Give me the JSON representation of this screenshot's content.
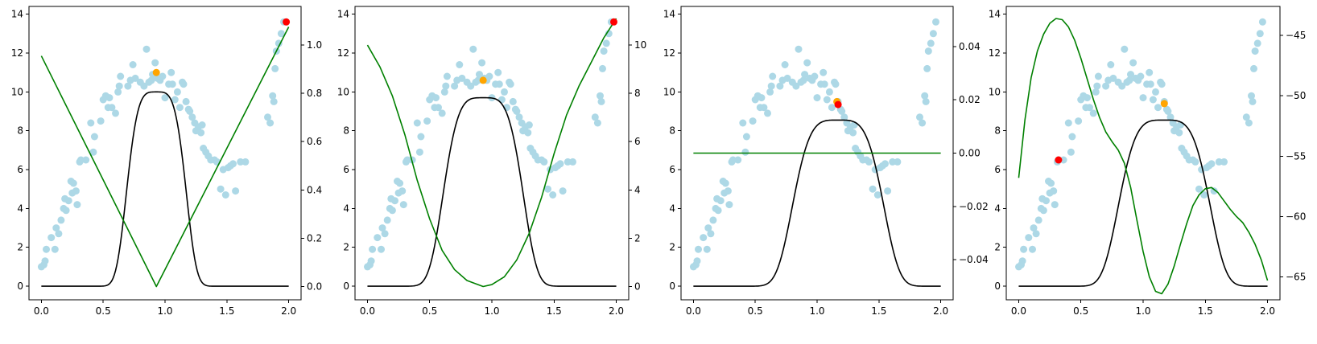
{
  "figure": {
    "colors": {
      "scatter": "#add8e6",
      "kernel_line": "#000000",
      "right_line": "#008000",
      "highlight_orange": "#ffa500",
      "highlight_red": "#ff0000"
    }
  },
  "chart_data": [
    {
      "type": "scatter",
      "panel": 1,
      "xlim": [
        -0.1,
        2.1
      ],
      "ylim": [
        -0.7,
        14.4
      ],
      "xticks": [
        0.0,
        0.5,
        1.0,
        1.5,
        2.0
      ],
      "xtick_labels": [
        "0.0",
        "0.5",
        "1.0",
        "1.5",
        "2.0"
      ],
      "yticks": [
        0,
        2,
        4,
        6,
        8,
        10,
        12,
        14
      ],
      "ytick_labels": [
        "0",
        "2",
        "4",
        "6",
        "8",
        "10",
        "12",
        "14"
      ],
      "y2lim": [
        -0.055,
        1.16
      ],
      "y2ticks": [
        0.0,
        0.2,
        0.4,
        0.6,
        0.8,
        1.0
      ],
      "y2tick_labels": [
        "0.0",
        "0.2",
        "0.4",
        "0.6",
        "0.8",
        "1.0"
      ],
      "kernel": {
        "center": 0.93,
        "width": 0.262,
        "power": 4,
        "amplitude": 10.0
      },
      "green_line": {
        "kind": "piecewise",
        "points": [
          [
            0.0,
            0.955
          ],
          [
            0.93,
            0.0
          ],
          [
            2.0,
            1.075
          ]
        ]
      },
      "highlight_orange": [
        0.93,
        11.0
      ],
      "highlight_red": [
        1.98,
        13.6
      ],
      "title": "",
      "xlabel": "",
      "ylabel": ""
    },
    {
      "type": "scatter",
      "panel": 2,
      "xlim": [
        -0.1,
        2.1
      ],
      "ylim": [
        -0.7,
        14.4
      ],
      "xticks": [
        0.0,
        0.5,
        1.0,
        1.5,
        2.0
      ],
      "xtick_labels": [
        "0.0",
        "0.5",
        "1.0",
        "1.5",
        "2.0"
      ],
      "yticks": [
        0,
        2,
        4,
        6,
        8,
        10,
        12,
        14
      ],
      "ytick_labels": [
        "0",
        "2",
        "4",
        "6",
        "8",
        "10",
        "12",
        "14"
      ],
      "y2lim": [
        -0.55,
        11.6
      ],
      "y2ticks": [
        0,
        2,
        4,
        6,
        8,
        10
      ],
      "y2tick_labels": [
        "0",
        "2",
        "4",
        "6",
        "8",
        "10"
      ],
      "kernel": {
        "center": 0.93,
        "width": 0.35,
        "power": 4,
        "amplitude": 9.7
      },
      "green_line": {
        "kind": "points",
        "points": [
          [
            0.0,
            10.0
          ],
          [
            0.1,
            9.1
          ],
          [
            0.2,
            7.9
          ],
          [
            0.3,
            6.3
          ],
          [
            0.4,
            4.4
          ],
          [
            0.5,
            2.8
          ],
          [
            0.6,
            1.5
          ],
          [
            0.7,
            0.7
          ],
          [
            0.8,
            0.25
          ],
          [
            0.93,
            0.0
          ],
          [
            1.0,
            0.08
          ],
          [
            1.1,
            0.4
          ],
          [
            1.2,
            1.1
          ],
          [
            1.3,
            2.2
          ],
          [
            1.4,
            3.7
          ],
          [
            1.5,
            5.5
          ],
          [
            1.6,
            7.1
          ],
          [
            1.7,
            8.3
          ],
          [
            1.8,
            9.3
          ],
          [
            1.9,
            10.3
          ],
          [
            2.0,
            11.1
          ]
        ]
      },
      "highlight_orange": [
        0.93,
        10.6
      ],
      "highlight_red": [
        1.98,
        13.6
      ],
      "title": "",
      "xlabel": "",
      "ylabel": ""
    },
    {
      "type": "scatter",
      "panel": 3,
      "xlim": [
        -0.1,
        2.1
      ],
      "ylim": [
        -0.7,
        14.4
      ],
      "xticks": [
        0.0,
        0.5,
        1.0,
        1.5,
        2.0
      ],
      "xtick_labels": [
        "0.0",
        "0.5",
        "1.0",
        "1.5",
        "2.0"
      ],
      "yticks": [
        0,
        2,
        4,
        6,
        8,
        10,
        12,
        14
      ],
      "ytick_labels": [
        "0",
        "2",
        "4",
        "6",
        "8",
        "10",
        "12",
        "14"
      ],
      "y2lim": [
        -0.055,
        0.055
      ],
      "y2ticks": [
        -0.04,
        -0.02,
        0.0,
        0.02,
        0.04
      ],
      "y2tick_labels": [
        "−0.04",
        "−0.02",
        "0.00",
        "0.02",
        "0.04"
      ],
      "kernel": {
        "center": 1.17,
        "width": 0.4,
        "power": 4,
        "amplitude": 8.55
      },
      "green_line": {
        "kind": "points",
        "points": [
          [
            0.0,
            0.0
          ],
          [
            2.0,
            0.0
          ]
        ]
      },
      "highlight_orange": [
        1.16,
        9.5
      ],
      "highlight_red": [
        1.17,
        9.35
      ],
      "title": "",
      "xlabel": "",
      "ylabel": ""
    },
    {
      "type": "scatter",
      "panel": 4,
      "xlim": [
        -0.1,
        2.1
      ],
      "ylim": [
        -0.7,
        14.4
      ],
      "xticks": [
        0.0,
        0.5,
        1.0,
        1.5,
        2.0
      ],
      "xtick_labels": [
        "0.0",
        "0.5",
        "1.0",
        "1.5",
        "2.0"
      ],
      "yticks": [
        0,
        2,
        4,
        6,
        8,
        10,
        12,
        14
      ],
      "ytick_labels": [
        "0",
        "2",
        "4",
        "6",
        "8",
        "10",
        "12",
        "14"
      ],
      "y2lim": [
        -66.9,
        -42.6
      ],
      "y2ticks": [
        -65,
        -60,
        -55,
        -50,
        -45
      ],
      "y2tick_labels": [
        "−65",
        "−60",
        "−55",
        "−50",
        "−45"
      ],
      "kernel": {
        "center": 1.17,
        "width": 0.4,
        "power": 4,
        "amplitude": 8.55
      },
      "green_line": {
        "kind": "points",
        "points": [
          [
            0.0,
            -56.8
          ],
          [
            0.05,
            -52.0
          ],
          [
            0.1,
            -48.5
          ],
          [
            0.15,
            -46.3
          ],
          [
            0.2,
            -44.9
          ],
          [
            0.25,
            -44.0
          ],
          [
            0.3,
            -43.6
          ],
          [
            0.35,
            -43.7
          ],
          [
            0.4,
            -44.3
          ],
          [
            0.45,
            -45.4
          ],
          [
            0.5,
            -46.9
          ],
          [
            0.55,
            -48.6
          ],
          [
            0.6,
            -50.3
          ],
          [
            0.65,
            -51.8
          ],
          [
            0.7,
            -53.0
          ],
          [
            0.75,
            -53.8
          ],
          [
            0.8,
            -54.5
          ],
          [
            0.85,
            -55.6
          ],
          [
            0.9,
            -57.6
          ],
          [
            0.95,
            -60.3
          ],
          [
            1.0,
            -62.9
          ],
          [
            1.05,
            -65.0
          ],
          [
            1.1,
            -66.2
          ],
          [
            1.15,
            -66.4
          ],
          [
            1.2,
            -65.6
          ],
          [
            1.25,
            -64.1
          ],
          [
            1.3,
            -62.3
          ],
          [
            1.35,
            -60.6
          ],
          [
            1.4,
            -59.1
          ],
          [
            1.45,
            -58.2
          ],
          [
            1.5,
            -57.7
          ],
          [
            1.55,
            -57.6
          ],
          [
            1.6,
            -58.0
          ],
          [
            1.65,
            -58.7
          ],
          [
            1.7,
            -59.4
          ],
          [
            1.75,
            -60.0
          ],
          [
            1.8,
            -60.5
          ],
          [
            1.85,
            -61.3
          ],
          [
            1.9,
            -62.3
          ],
          [
            1.95,
            -63.6
          ],
          [
            2.0,
            -65.3
          ]
        ]
      },
      "highlight_orange": [
        1.17,
        9.4
      ],
      "highlight_red": [
        0.32,
        6.5
      ],
      "title": "",
      "xlabel": "",
      "ylabel": ""
    }
  ],
  "scatter_points": [
    [
      0.0,
      1.0
    ],
    [
      0.02,
      1.1
    ],
    [
      0.03,
      1.3
    ],
    [
      0.04,
      1.9
    ],
    [
      0.08,
      2.5
    ],
    [
      0.11,
      1.9
    ],
    [
      0.12,
      3.0
    ],
    [
      0.14,
      2.7
    ],
    [
      0.16,
      3.4
    ],
    [
      0.18,
      4.0
    ],
    [
      0.19,
      4.5
    ],
    [
      0.2,
      3.9
    ],
    [
      0.22,
      4.4
    ],
    [
      0.24,
      5.4
    ],
    [
      0.25,
      4.8
    ],
    [
      0.26,
      5.3
    ],
    [
      0.28,
      4.9
    ],
    [
      0.29,
      4.2
    ],
    [
      0.31,
      6.4
    ],
    [
      0.32,
      6.5
    ],
    [
      0.36,
      6.5
    ],
    [
      0.4,
      8.4
    ],
    [
      0.42,
      6.9
    ],
    [
      0.43,
      7.7
    ],
    [
      0.48,
      8.5
    ],
    [
      0.5,
      9.6
    ],
    [
      0.52,
      9.8
    ],
    [
      0.54,
      9.2
    ],
    [
      0.55,
      9.7
    ],
    [
      0.57,
      9.2
    ],
    [
      0.6,
      8.9
    ],
    [
      0.62,
      10.0
    ],
    [
      0.63,
      10.3
    ],
    [
      0.64,
      10.8
    ],
    [
      0.7,
      10.3
    ],
    [
      0.72,
      10.6
    ],
    [
      0.74,
      11.4
    ],
    [
      0.76,
      10.7
    ],
    [
      0.8,
      10.5
    ],
    [
      0.83,
      10.3
    ],
    [
      0.85,
      12.2
    ],
    [
      0.87,
      10.5
    ],
    [
      0.89,
      10.6
    ],
    [
      0.9,
      10.9
    ],
    [
      0.92,
      11.5
    ],
    [
      0.94,
      10.7
    ],
    [
      0.96,
      10.6
    ],
    [
      0.98,
      10.8
    ],
    [
      1.0,
      9.7
    ],
    [
      1.03,
      10.4
    ],
    [
      1.05,
      11.0
    ],
    [
      1.06,
      10.4
    ],
    [
      1.08,
      9.6
    ],
    [
      1.1,
      10.0
    ],
    [
      1.12,
      9.2
    ],
    [
      1.14,
      10.5
    ],
    [
      1.15,
      10.4
    ],
    [
      1.17,
      9.5
    ],
    [
      1.19,
      9.1
    ],
    [
      1.2,
      9.0
    ],
    [
      1.22,
      8.7
    ],
    [
      1.24,
      8.4
    ],
    [
      1.25,
      8.0
    ],
    [
      1.27,
      8.2
    ],
    [
      1.29,
      7.9
    ],
    [
      1.3,
      8.3
    ],
    [
      1.31,
      7.1
    ],
    [
      1.33,
      6.9
    ],
    [
      1.35,
      6.7
    ],
    [
      1.37,
      6.5
    ],
    [
      1.4,
      6.5
    ],
    [
      1.42,
      6.4
    ],
    [
      1.45,
      5.0
    ],
    [
      1.47,
      6.0
    ],
    [
      1.49,
      4.7
    ],
    [
      1.51,
      6.1
    ],
    [
      1.53,
      6.2
    ],
    [
      1.55,
      6.3
    ],
    [
      1.57,
      4.9
    ],
    [
      1.61,
      6.4
    ],
    [
      1.65,
      6.4
    ],
    [
      1.83,
      8.7
    ],
    [
      1.85,
      8.4
    ],
    [
      1.87,
      9.8
    ],
    [
      1.88,
      9.5
    ],
    [
      1.89,
      11.2
    ],
    [
      1.9,
      12.1
    ],
    [
      1.92,
      12.5
    ],
    [
      1.94,
      13.0
    ],
    [
      1.96,
      13.6
    ]
  ]
}
